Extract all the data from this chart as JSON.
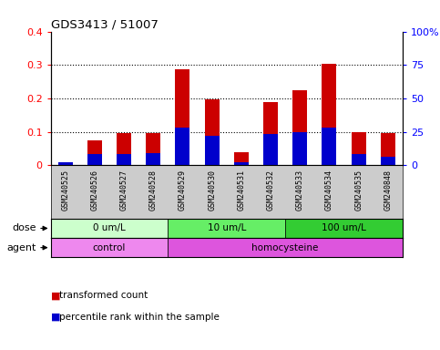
{
  "title": "GDS3413 / 51007",
  "samples": [
    "GSM240525",
    "GSM240526",
    "GSM240527",
    "GSM240528",
    "GSM240529",
    "GSM240530",
    "GSM240531",
    "GSM240532",
    "GSM240533",
    "GSM240534",
    "GSM240535",
    "GSM240848"
  ],
  "red_values": [
    0.005,
    0.075,
    0.097,
    0.095,
    0.287,
    0.197,
    0.038,
    0.188,
    0.225,
    0.302,
    0.098,
    0.095
  ],
  "blue_values_pct": [
    2,
    8,
    8,
    9,
    28,
    22,
    2,
    23,
    25,
    28,
    8,
    6
  ],
  "left_ylim": [
    0,
    0.4
  ],
  "right_ylim": [
    0,
    100
  ],
  "left_yticks": [
    0.0,
    0.1,
    0.2,
    0.3,
    0.4
  ],
  "right_yticks": [
    0,
    25,
    50,
    75,
    100
  ],
  "right_yticklabels": [
    "0",
    "25",
    "50",
    "75",
    "100%"
  ],
  "left_yticklabels": [
    "0",
    "0.1",
    "0.2",
    "0.3",
    "0.4"
  ],
  "dose_groups": [
    {
      "label": "0 um/L",
      "start": 0,
      "end": 4,
      "color": "#ccffcc"
    },
    {
      "label": "10 um/L",
      "start": 4,
      "end": 8,
      "color": "#66ee66"
    },
    {
      "label": "100 um/L",
      "start": 8,
      "end": 12,
      "color": "#33cc33"
    }
  ],
  "agent_groups": [
    {
      "label": "control",
      "start": 0,
      "end": 4,
      "color": "#ee88ee"
    },
    {
      "label": "homocysteine",
      "start": 4,
      "end": 12,
      "color": "#dd55dd"
    }
  ],
  "dose_label": "dose",
  "agent_label": "agent",
  "red_color": "#cc0000",
  "blue_color": "#0000cc",
  "legend_items": [
    {
      "color": "#cc0000",
      "label": "transformed count"
    },
    {
      "color": "#0000cc",
      "label": "percentile rank within the sample"
    }
  ],
  "bar_width": 0.5,
  "background_color": "#ffffff",
  "tick_label_area_color": "#cccccc"
}
